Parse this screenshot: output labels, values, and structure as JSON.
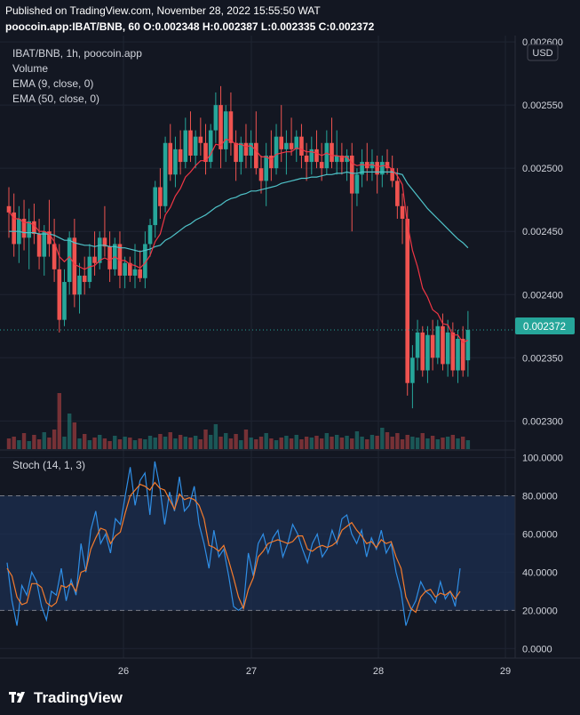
{
  "header": {
    "published": "Published on TradingView.com, November 28, 2022 15:55:50 WAT",
    "ohlc": "poocoin.app:IBAT/BNB, 60 O:0.002348 H:0.002387 L:0.002335 C:0.002372"
  },
  "legend": {
    "symbol": "IBAT/BNB, 1h, poocoin.app",
    "volume": "Volume",
    "ema9": "EMA (9, close, 0)",
    "ema50": "EMA (50, close, 0)",
    "stoch": "Stoch (14, 1, 3)"
  },
  "currency": "USD",
  "last_price": "0.002372",
  "brand": "TradingView",
  "colors": {
    "background": "#131722",
    "up": "#26a69a",
    "down": "#ef5350",
    "ema9": "#f23645",
    "ema50": "#4fc3c9",
    "stoch_k": "#2f8ee5",
    "stoch_d": "#f57c2d",
    "band": "#1c3152"
  },
  "chart_data": [
    {
      "type": "candlestick",
      "title": "IBAT/BNB, 1h, poocoin.app",
      "x_ticks": [
        "26",
        "27",
        "28",
        "29"
      ],
      "y_ticks": [
        "0.002300",
        "0.002350",
        "0.002400",
        "0.002450",
        "0.002500",
        "0.002550",
        "0.002600"
      ],
      "ylim": [
        0.002277,
        0.002605
      ],
      "ohlc": [
        [
          0.00247,
          0.002485,
          0.002445,
          0.002465
        ],
        [
          0.002465,
          0.00248,
          0.00243,
          0.00244
        ],
        [
          0.00244,
          0.00247,
          0.002425,
          0.00246
        ],
        [
          0.00246,
          0.002475,
          0.002435,
          0.002445
        ],
        [
          0.002445,
          0.002468,
          0.00242,
          0.002458
        ],
        [
          0.002458,
          0.002472,
          0.00244,
          0.002448
        ],
        [
          0.002448,
          0.00246,
          0.00242,
          0.00243
        ],
        [
          0.00243,
          0.002455,
          0.002415,
          0.00245
        ],
        [
          0.00245,
          0.002475,
          0.00243,
          0.00244
        ],
        [
          0.00244,
          0.00246,
          0.00241,
          0.00242
        ],
        [
          0.00242,
          0.00244,
          0.00237,
          0.00238
        ],
        [
          0.00238,
          0.00242,
          0.002375,
          0.00241
        ],
        [
          0.00241,
          0.00245,
          0.0024,
          0.002445
        ],
        [
          0.002445,
          0.00246,
          0.00239,
          0.0024
        ],
        [
          0.0024,
          0.002425,
          0.002385,
          0.002415
        ],
        [
          0.002415,
          0.00243,
          0.0024,
          0.00241
        ],
        [
          0.00241,
          0.00244,
          0.002405,
          0.00243
        ],
        [
          0.00243,
          0.00245,
          0.002415,
          0.002425
        ],
        [
          0.002425,
          0.00245,
          0.00242,
          0.002445
        ],
        [
          0.002445,
          0.00247,
          0.00243,
          0.002438
        ],
        [
          0.002438,
          0.00245,
          0.00241,
          0.00242
        ],
        [
          0.00242,
          0.002445,
          0.002415,
          0.00244
        ],
        [
          0.00244,
          0.00245,
          0.002405,
          0.002415
        ],
        [
          0.002415,
          0.00243,
          0.002405,
          0.002425
        ],
        [
          0.002425,
          0.00243,
          0.00241,
          0.002415
        ],
        [
          0.002415,
          0.00244,
          0.002405,
          0.00242
        ],
        [
          0.00242,
          0.002435,
          0.00241,
          0.002413
        ],
        [
          0.002413,
          0.00245,
          0.002405,
          0.00244
        ],
        [
          0.00244,
          0.00246,
          0.00243,
          0.002455
        ],
        [
          0.002455,
          0.00249,
          0.002445,
          0.002485
        ],
        [
          0.002485,
          0.0025,
          0.00246,
          0.00247
        ],
        [
          0.00247,
          0.002525,
          0.002465,
          0.00252
        ],
        [
          0.00252,
          0.002535,
          0.00249,
          0.002495
        ],
        [
          0.002495,
          0.002525,
          0.002485,
          0.002515
        ],
        [
          0.002515,
          0.00253,
          0.002495,
          0.002505
        ],
        [
          0.002505,
          0.00254,
          0.0025,
          0.00253
        ],
        [
          0.00253,
          0.002545,
          0.002505,
          0.00251
        ],
        [
          0.00251,
          0.00253,
          0.0025,
          0.002525
        ],
        [
          0.002525,
          0.00254,
          0.00251,
          0.00252
        ],
        [
          0.00252,
          0.002535,
          0.002495,
          0.002505
        ],
        [
          0.002505,
          0.002535,
          0.0025,
          0.00253
        ],
        [
          0.00253,
          0.00256,
          0.00252,
          0.00255
        ],
        [
          0.00255,
          0.002565,
          0.0025,
          0.002515
        ],
        [
          0.002515,
          0.00255,
          0.002505,
          0.002545
        ],
        [
          0.002545,
          0.00256,
          0.00251,
          0.00252
        ],
        [
          0.00252,
          0.00253,
          0.00249,
          0.002505
        ],
        [
          0.002505,
          0.002525,
          0.002495,
          0.00252
        ],
        [
          0.00252,
          0.002535,
          0.0025,
          0.00251
        ],
        [
          0.00251,
          0.00253,
          0.0025,
          0.00252
        ],
        [
          0.00252,
          0.002545,
          0.002495,
          0.0025
        ],
        [
          0.0025,
          0.00251,
          0.00248,
          0.00249
        ],
        [
          0.00249,
          0.00252,
          0.00247,
          0.00251
        ],
        [
          0.00251,
          0.00253,
          0.00249,
          0.0025
        ],
        [
          0.0025,
          0.002535,
          0.002495,
          0.002525
        ],
        [
          0.002525,
          0.00255,
          0.002505,
          0.002515
        ],
        [
          0.002515,
          0.00253,
          0.002495,
          0.00252
        ],
        [
          0.00252,
          0.00254,
          0.00251,
          0.002515
        ],
        [
          0.002515,
          0.00253,
          0.002505,
          0.002525
        ],
        [
          0.002525,
          0.002535,
          0.0025,
          0.00251
        ],
        [
          0.00251,
          0.00252,
          0.00249,
          0.002505
        ],
        [
          0.002505,
          0.002525,
          0.002495,
          0.002515
        ],
        [
          0.002515,
          0.00253,
          0.0025,
          0.002505
        ],
        [
          0.002505,
          0.00252,
          0.00249,
          0.0025
        ],
        [
          0.0025,
          0.00253,
          0.002495,
          0.00252
        ],
        [
          0.00252,
          0.00254,
          0.0025,
          0.002505
        ],
        [
          0.002505,
          0.00253,
          0.002495,
          0.00251
        ],
        [
          0.00251,
          0.00252,
          0.002495,
          0.002505
        ],
        [
          0.002505,
          0.002515,
          0.00249,
          0.00251
        ],
        [
          0.00251,
          0.00252,
          0.00245,
          0.00248
        ],
        [
          0.00248,
          0.0025,
          0.00247,
          0.002495
        ],
        [
          0.002495,
          0.002515,
          0.002485,
          0.002505
        ],
        [
          0.002505,
          0.00252,
          0.00249,
          0.0025
        ],
        [
          0.0025,
          0.002515,
          0.00249,
          0.002505
        ],
        [
          0.002505,
          0.00251,
          0.00248,
          0.002495
        ],
        [
          0.002495,
          0.00251,
          0.002485,
          0.002505
        ],
        [
          0.002505,
          0.002515,
          0.002495,
          0.0025
        ],
        [
          0.0025,
          0.00251,
          0.002485,
          0.00249
        ],
        [
          0.00249,
          0.0025,
          0.00246,
          0.00247
        ],
        [
          0.00247,
          0.00248,
          0.00244,
          0.00246
        ],
        [
          0.00246,
          0.00247,
          0.00232,
          0.00233
        ],
        [
          0.00233,
          0.00236,
          0.00231,
          0.00235
        ],
        [
          0.00235,
          0.00238,
          0.00234,
          0.00237
        ],
        [
          0.00237,
          0.002375,
          0.002335,
          0.00234
        ],
        [
          0.00234,
          0.002375,
          0.00233,
          0.002368
        ],
        [
          0.002368,
          0.00238,
          0.00234,
          0.00235
        ],
        [
          0.00235,
          0.00238,
          0.002345,
          0.002375
        ],
        [
          0.002375,
          0.002385,
          0.00234,
          0.002345
        ],
        [
          0.002345,
          0.00238,
          0.002335,
          0.00237
        ],
        [
          0.00237,
          0.002378,
          0.002335,
          0.00234
        ],
        [
          0.00234,
          0.002372,
          0.00233,
          0.002365
        ],
        [
          0.002365,
          0.002375,
          0.002335,
          0.00234
        ],
        [
          0.002348,
          0.002387,
          0.002335,
          0.002372
        ]
      ],
      "ema9": [
        0.002466,
        0.00246,
        0.00246,
        0.002457,
        0.002457,
        0.002455,
        0.00245,
        0.00245,
        0.002448,
        0.002442,
        0.00243,
        0.002426,
        0.00243,
        0.002424,
        0.002422,
        0.00242,
        0.002422,
        0.002423,
        0.002427,
        0.002429,
        0.002427,
        0.00243,
        0.002427,
        0.002427,
        0.002424,
        0.002423,
        0.002421,
        0.002425,
        0.002431,
        0.002442,
        0.002448,
        0.002463,
        0.002469,
        0.002478,
        0.002484,
        0.002493,
        0.002497,
        0.002502,
        0.002506,
        0.002506,
        0.002511,
        0.002519,
        0.002518,
        0.002523,
        0.002522,
        0.002519,
        0.002519,
        0.002517,
        0.002518,
        0.002514,
        0.002509,
        0.002509,
        0.002507,
        0.002511,
        0.002512,
        0.002513,
        0.002513,
        0.002516,
        0.002515,
        0.002513,
        0.002513,
        0.002512,
        0.00251,
        0.002512,
        0.00251,
        0.00251,
        0.002509,
        0.002509,
        0.002504,
        0.002502,
        0.002503,
        0.002502,
        0.002503,
        0.002501,
        0.002502,
        0.002502,
        0.002499,
        0.002494,
        0.002487,
        0.002456,
        0.002435,
        0.002422,
        0.002405,
        0.002398,
        0.002388,
        0.002385,
        0.002377,
        0.002376,
        0.002368,
        0.002368,
        0.002362,
        0.002364
      ],
      "ema50": [
        0.00245,
        0.00245,
        0.00245,
        0.002449,
        0.002449,
        0.002449,
        0.002448,
        0.002448,
        0.002448,
        0.002447,
        0.002445,
        0.002443,
        0.002443,
        0.002441,
        0.00244,
        0.002439,
        0.002439,
        0.002438,
        0.002439,
        0.002439,
        0.002438,
        0.002438,
        0.002437,
        0.002437,
        0.002436,
        0.002435,
        0.002434,
        0.002435,
        0.002436,
        0.002438,
        0.002439,
        0.002443,
        0.002445,
        0.002448,
        0.002451,
        0.002454,
        0.002456,
        0.002459,
        0.002461,
        0.002463,
        0.002466,
        0.002469,
        0.002471,
        0.002474,
        0.002476,
        0.002477,
        0.002479,
        0.00248,
        0.002482,
        0.002482,
        0.002483,
        0.002484,
        0.002485,
        0.002486,
        0.002488,
        0.002489,
        0.00249,
        0.002491,
        0.002492,
        0.002492,
        0.002493,
        0.002493,
        0.002494,
        0.002495,
        0.002495,
        0.002496,
        0.002496,
        0.002497,
        0.002496,
        0.002496,
        0.002497,
        0.002497,
        0.002497,
        0.002497,
        0.002497,
        0.002497,
        0.002497,
        0.002496,
        0.002495,
        0.002488,
        0.002483,
        0.002478,
        0.002473,
        0.002468,
        0.002464,
        0.00246,
        0.002456,
        0.002452,
        0.002448,
        0.002444,
        0.002441,
        0.002437
      ]
    },
    {
      "type": "bar",
      "title": "Volume",
      "values": [
        12,
        14,
        10,
        18,
        9,
        16,
        11,
        19,
        13,
        22,
        63,
        14,
        40,
        30,
        12,
        17,
        10,
        13,
        16,
        12,
        9,
        15,
        11,
        14,
        13,
        10,
        12,
        11,
        15,
        13,
        17,
        14,
        19,
        12,
        16,
        14,
        13,
        15,
        11,
        22,
        16,
        28,
        14,
        18,
        12,
        17,
        10,
        22,
        13,
        11,
        14,
        18,
        12,
        10,
        13,
        15,
        12,
        16,
        11,
        14,
        13,
        15,
        12,
        18,
        14,
        16,
        13,
        15,
        12,
        20,
        14,
        11,
        16,
        15,
        24,
        19,
        14,
        18,
        11,
        16,
        14,
        13,
        18,
        12,
        15,
        11,
        13,
        14,
        16,
        12,
        14,
        10
      ]
    },
    {
      "type": "line",
      "title": "Stoch (14, 1, 3)",
      "y_ticks": [
        "0.0000",
        "20.0000",
        "40.0000",
        "60.0000",
        "80.0000",
        "100.0000"
      ],
      "ylim": [
        -5,
        104
      ],
      "bands": [
        20,
        80
      ],
      "series": [
        {
          "name": "K",
          "values": [
            45,
            25,
            12,
            33,
            28,
            40,
            35,
            22,
            15,
            30,
            28,
            42,
            25,
            36,
            28,
            55,
            40,
            62,
            72,
            55,
            60,
            50,
            68,
            65,
            80,
            95,
            75,
            88,
            92,
            70,
            98,
            85,
            65,
            82,
            72,
            90,
            72,
            75,
            85,
            65,
            55,
            42,
            62,
            48,
            52,
            38,
            22,
            20,
            22,
            50,
            38,
            55,
            60,
            50,
            58,
            62,
            48,
            55,
            65,
            60,
            52,
            45,
            55,
            60,
            48,
            52,
            62,
            55,
            68,
            70,
            60,
            55,
            62,
            48,
            58,
            52,
            62,
            50,
            55,
            40,
            30,
            12,
            20,
            25,
            35,
            30,
            28,
            24,
            35,
            26,
            30,
            22,
            42
          ]
        },
        {
          "name": "D",
          "values": [
            42,
            38,
            27,
            23,
            24,
            34,
            34,
            32,
            24,
            22,
            24,
            33,
            32,
            34,
            30,
            40,
            41,
            52,
            58,
            63,
            62,
            55,
            59,
            61,
            71,
            80,
            83,
            86,
            85,
            83,
            87,
            84,
            83,
            78,
            73,
            81,
            78,
            79,
            78,
            75,
            68,
            54,
            53,
            51,
            54,
            46,
            37,
            27,
            21,
            31,
            37,
            48,
            51,
            55,
            56,
            57,
            56,
            55,
            56,
            59,
            59,
            52,
            51,
            53,
            54,
            53,
            54,
            56,
            62,
            64,
            66,
            62,
            59,
            55,
            56,
            53,
            57,
            55,
            56,
            48,
            42,
            27,
            21,
            19,
            27,
            30,
            31,
            27,
            29,
            28,
            30,
            26,
            30
          ]
        }
      ]
    }
  ]
}
